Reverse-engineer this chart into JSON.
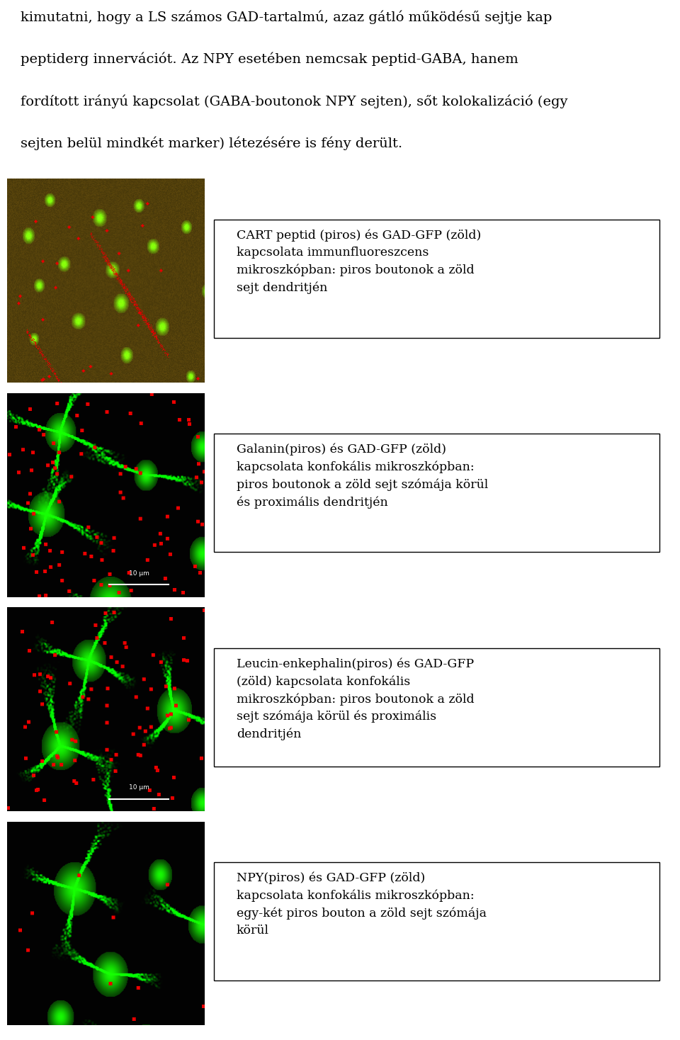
{
  "background_color": "#ffffff",
  "text_color": "#000000",
  "header_text": "kimutatni, hogy a LS számos GAD-tartalmú, azaz gátló működésű sejtje kap peptiderg innervációt. Az NPY esetében nemcsak peptid-GABA, hanem fordított irányú kapcsolat (GABA-boutonok NPY sejten), sőt kolokializáció (egy sejten belül mindkét marker) létezésére is fény derült.",
  "panels": [
    {
      "style": "green_red_brown",
      "seed": 42,
      "caption": "CART peptid (piros) és GAD-GFP (zöld)\nkapcsolata immunfluoreszcens\nmikroszkópban: piros boutonok a zöld\nsejt dendritjén",
      "scale_bar": false
    },
    {
      "style": "confocal_dark",
      "seed": 55,
      "caption": "Galanin(piros) és GAD-GFP (zöld)\nkapcsolata konfokális mikroszkópban:\npiros boutonok a zöld sejt szómája körül\nés proximális dendritjén",
      "scale_bar": true,
      "scale_text": "10 μm"
    },
    {
      "style": "confocal_dark2",
      "seed": 77,
      "caption": "Leucin-enkephalin(piros) és GAD-GFP\n(zöld) kapcsolata konfokális\nmikroszkópban: piros boutonok a zöld\nsejt szómája körül és proximális\ndendritjén",
      "scale_bar": true,
      "scale_text": "10 μm"
    },
    {
      "style": "confocal_dark3",
      "seed": 99,
      "caption": "NPY(piros) és GAD-GFP (zöld)\nkapcsolata konfokális mikroszkópban:\negy-két piros bouton a zöld sejt szómája\nkörül",
      "scale_bar": false
    }
  ],
  "fig_width": 9.6,
  "fig_height": 14.68,
  "dpi": 100
}
